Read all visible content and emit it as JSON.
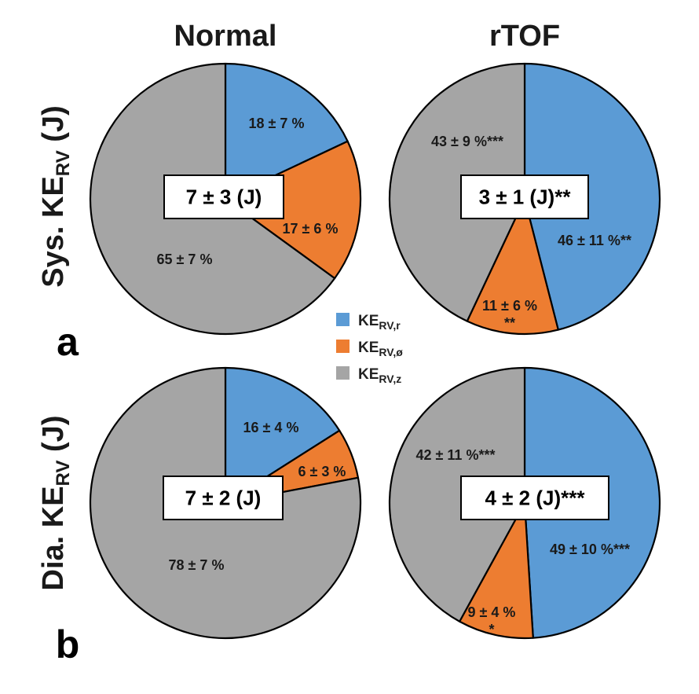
{
  "chart_data": {
    "type": "pie",
    "column_titles": [
      "Normal",
      "rTOF"
    ],
    "rows": [
      {
        "title_main": "Sys. KE",
        "title_sub": "RV",
        "title_unit": " (J)",
        "letter": "a"
      },
      {
        "title_main": "Dia. KE",
        "title_sub": "RV",
        "title_unit": " (J)",
        "letter": "b"
      }
    ],
    "legend": [
      {
        "main": "KE",
        "sub": "RV,r",
        "color": "#5B9BD5"
      },
      {
        "main": "KE",
        "sub": "RV,ø",
        "color": "#ED7D31"
      },
      {
        "main": "KE",
        "sub": "RV,z",
        "color": "#A5A5A5"
      }
    ],
    "series_order": [
      "KE_RV,r",
      "KE_RV,ø",
      "KE_RV,z"
    ],
    "pies": [
      {
        "row": 0,
        "col": 0,
        "total": "7 ± 3 (J)",
        "slices": [
          {
            "component": "r",
            "value": 18,
            "label": "18 ± 7 %",
            "label2": ""
          },
          {
            "component": "phi",
            "value": 17,
            "label": "17 ± 6 %",
            "label2": ""
          },
          {
            "component": "z",
            "value": 65,
            "label": "65 ± 7 %",
            "label2": ""
          }
        ]
      },
      {
        "row": 0,
        "col": 1,
        "total": "3 ± 1 (J)**",
        "slices": [
          {
            "component": "r",
            "value": 46,
            "label": "46 ± 11 %**",
            "label2": ""
          },
          {
            "component": "phi",
            "value": 11,
            "label": "11 ± 6 %",
            "label2": "**"
          },
          {
            "component": "z",
            "value": 43,
            "label": "43 ± 9 %***",
            "label2": ""
          }
        ]
      },
      {
        "row": 1,
        "col": 0,
        "total": "7 ± 2 (J)",
        "slices": [
          {
            "component": "r",
            "value": 16,
            "label": "16 ± 4 %",
            "label2": ""
          },
          {
            "component": "phi",
            "value": 6,
            "label": "6 ± 3 %",
            "label2": ""
          },
          {
            "component": "z",
            "value": 78,
            "label": "78 ± 7 %",
            "label2": ""
          }
        ]
      },
      {
        "row": 1,
        "col": 1,
        "total": "4 ± 2 (J)***",
        "slices": [
          {
            "component": "r",
            "value": 49,
            "label": "49 ± 10 %***",
            "label2": ""
          },
          {
            "component": "phi",
            "value": 9,
            "label": "9 ± 4 %",
            "label2": "*"
          },
          {
            "component": "z",
            "value": 42,
            "label": "42 ± 11 %***",
            "label2": ""
          }
        ]
      }
    ]
  }
}
